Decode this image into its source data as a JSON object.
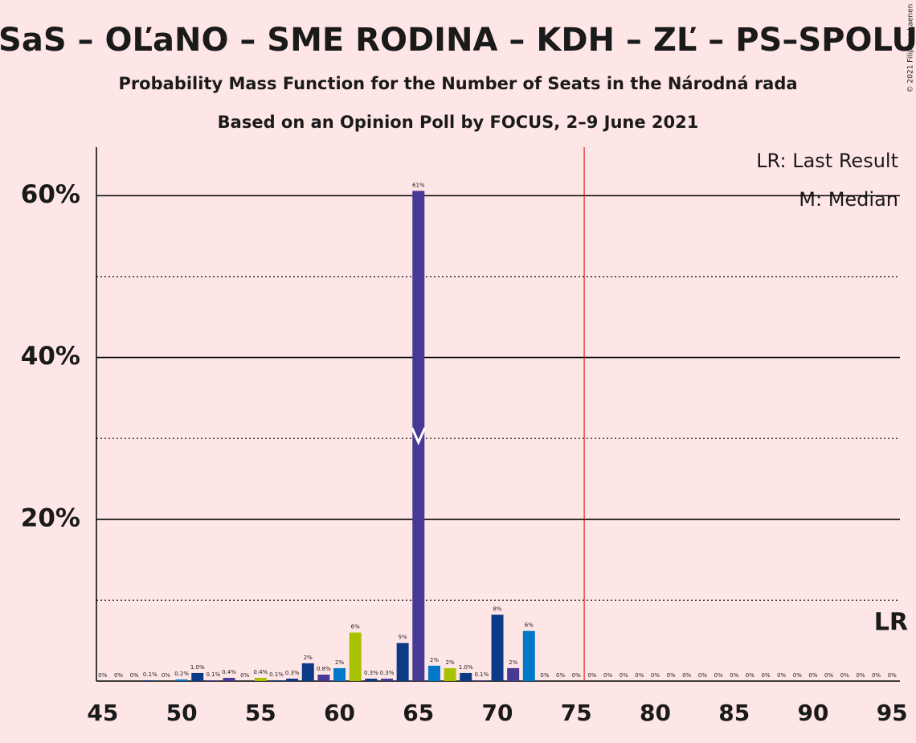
{
  "chart_data": {
    "type": "bar",
    "title": "SaS – OĽaNO – SME RODINA – KDH – ZĽ – PS–SPOLU",
    "subtitle": "Probability Mass Function for the Number of Seats in the Národná rada",
    "subtitle2": "Based on an Opinion Poll by FOCUS, 2–9 June 2021",
    "copyright": "© 2021 Filip van Laenen",
    "legend": [
      "LR: Last Result",
      "M: Median"
    ],
    "legend_position": "top-right",
    "last_result_label": "LR",
    "last_result": 75.5,
    "median": 65,
    "x": [
      45,
      46,
      47,
      48,
      49,
      50,
      51,
      52,
      53,
      54,
      55,
      56,
      57,
      58,
      59,
      60,
      61,
      62,
      63,
      64,
      65,
      66,
      67,
      68,
      69,
      70,
      71,
      72,
      73,
      74,
      75,
      76,
      77,
      78,
      79,
      80,
      81,
      82,
      83,
      84,
      85,
      86,
      87,
      88,
      89,
      90,
      91,
      92,
      93,
      94,
      95
    ],
    "values": [
      0,
      0,
      0,
      0.1,
      0,
      0.2,
      1.0,
      0.1,
      0.4,
      0,
      0.4,
      0.1,
      0.3,
      2.2,
      0.8,
      1.6,
      6.0,
      0.3,
      0.3,
      4.7,
      60.6,
      1.9,
      1.6,
      1.0,
      0.1,
      8.2,
      1.6,
      6.2,
      0,
      0,
      0,
      0,
      0,
      0,
      0,
      0,
      0,
      0,
      0,
      0,
      0,
      0,
      0,
      0,
      0,
      0,
      0,
      0,
      0,
      0,
      0
    ],
    "value_labels": [
      "0%",
      "0%",
      "0%",
      "0.1%",
      "0%",
      "0.2%",
      "1.0%",
      "0.1%",
      "0.4%",
      "0%",
      "0.4%",
      "0.1%",
      "0.3%",
      "2%",
      "0.8%",
      "2%",
      "6%",
      "0.3%",
      "0.3%",
      "5%",
      "61%",
      "2%",
      "2%",
      "1.0%",
      "0.1%",
      "8%",
      "2%",
      "6%",
      "0%",
      "0%",
      "0%",
      "0%",
      "0%",
      "0%",
      "0%",
      "0%",
      "0%",
      "0%",
      "0%",
      "0%",
      "0%",
      "0%",
      "0%",
      "0%",
      "0%",
      "0%",
      "0%",
      "0%",
      "0%",
      "0%",
      "0%"
    ],
    "colors": [
      "#0c3a87",
      "#0c3a87",
      "#0c3a87",
      "#0c3a87",
      "#0c3a87",
      "#0077c8",
      "#0c3a87",
      "#463a94",
      "#463a94",
      "#0c3a87",
      "#a9c200",
      "#0c3a87",
      "#0c3a87",
      "#0c3a87",
      "#463a94",
      "#0077c8",
      "#a9c200",
      "#0c3a87",
      "#463a94",
      "#0c3a87",
      "#463a94",
      "#0077c8",
      "#a9c200",
      "#0c3a87",
      "#463a94",
      "#0c3a87",
      "#463a94",
      "#0077c8",
      "#0c3a87",
      "#0c3a87",
      "#0c3a87",
      "#0c3a87",
      "#0c3a87",
      "#0c3a87",
      "#0c3a87",
      "#0c3a87",
      "#0c3a87",
      "#0c3a87",
      "#0c3a87",
      "#0c3a87",
      "#0c3a87",
      "#0c3a87",
      "#0c3a87",
      "#0c3a87",
      "#0c3a87",
      "#0c3a87",
      "#0c3a87",
      "#0c3a87",
      "#0c3a87",
      "#0c3a87",
      "#0c3a87"
    ],
    "xlim": [
      44.6,
      95.5
    ],
    "xticks": [
      45,
      50,
      55,
      60,
      65,
      70,
      75,
      80,
      85,
      90,
      95
    ],
    "ylim": [
      0,
      66
    ],
    "yticks": [
      {
        "value": 20,
        "label": "20%"
      },
      {
        "value": 40,
        "label": "40%"
      },
      {
        "value": 60,
        "label": "60%"
      }
    ],
    "minor_yticks": [
      10,
      30,
      50
    ],
    "grid": true
  }
}
